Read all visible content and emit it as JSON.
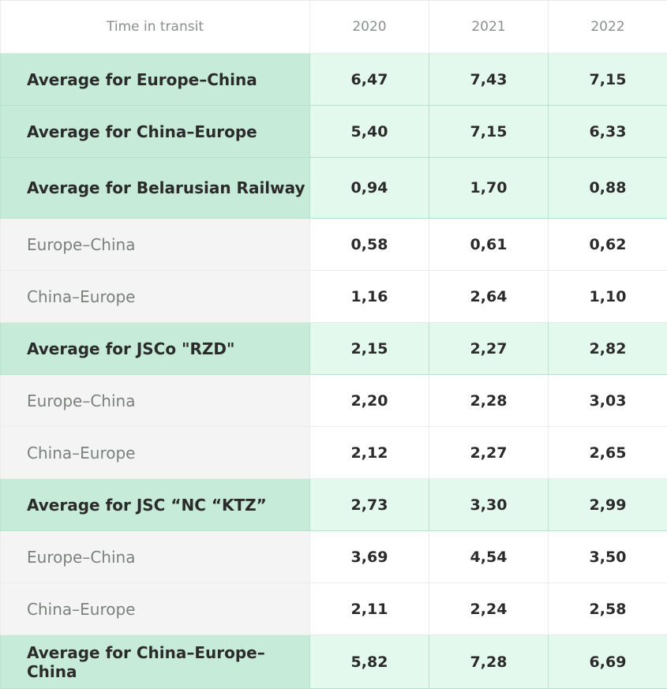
{
  "chart_data": {
    "type": "table",
    "columns": [
      "Time in transit",
      "2020",
      "2021",
      "2022"
    ],
    "rows": [
      {
        "label": "Average for Europe–China",
        "kind": "average",
        "values": [
          "6,47",
          "7,43",
          "7,15"
        ]
      },
      {
        "label": "Average for China–Europe",
        "kind": "average",
        "values": [
          "5,40",
          "7,15",
          "6,33"
        ]
      },
      {
        "label": "Average for Belarusian Railway",
        "kind": "average",
        "values": [
          "0,94",
          "1,70",
          "0,88"
        ]
      },
      {
        "label": "Europe–China",
        "kind": "sub",
        "values": [
          "0,58",
          "0,61",
          "0,62"
        ]
      },
      {
        "label": "China–Europe",
        "kind": "sub",
        "values": [
          "1,16",
          "2,64",
          "1,10"
        ]
      },
      {
        "label": "Average for JSCo \"RZD\"",
        "kind": "average",
        "values": [
          "2,15",
          "2,27",
          "2,82"
        ]
      },
      {
        "label": "Europe–China",
        "kind": "sub",
        "values": [
          "2,20",
          "2,28",
          "3,03"
        ]
      },
      {
        "label": "China–Europe",
        "kind": "sub",
        "values": [
          "2,12",
          "2,27",
          "2,65"
        ]
      },
      {
        "label": "Average for JSC “NC “KTZ”",
        "kind": "average",
        "values": [
          "2,73",
          "3,30",
          "2,99"
        ]
      },
      {
        "label": "Europe–China",
        "kind": "sub",
        "values": [
          "3,69",
          "4,54",
          "3,50"
        ]
      },
      {
        "label": "China–Europe",
        "kind": "sub",
        "values": [
          "2,11",
          "2,24",
          "2,58"
        ]
      },
      {
        "label": "Average for China–Europe–China",
        "kind": "average",
        "values": [
          "5,82",
          "7,28",
          "6,69"
        ]
      }
    ]
  },
  "colors": {
    "average_label_bg": "#c6ebd8",
    "average_value_bg": "#e4f9ee",
    "sub_label_bg": "#f3f4f3",
    "sub_label_text": "#7b807d",
    "value_text": "#2b2b2b",
    "header_text": "#8a8f8c"
  }
}
